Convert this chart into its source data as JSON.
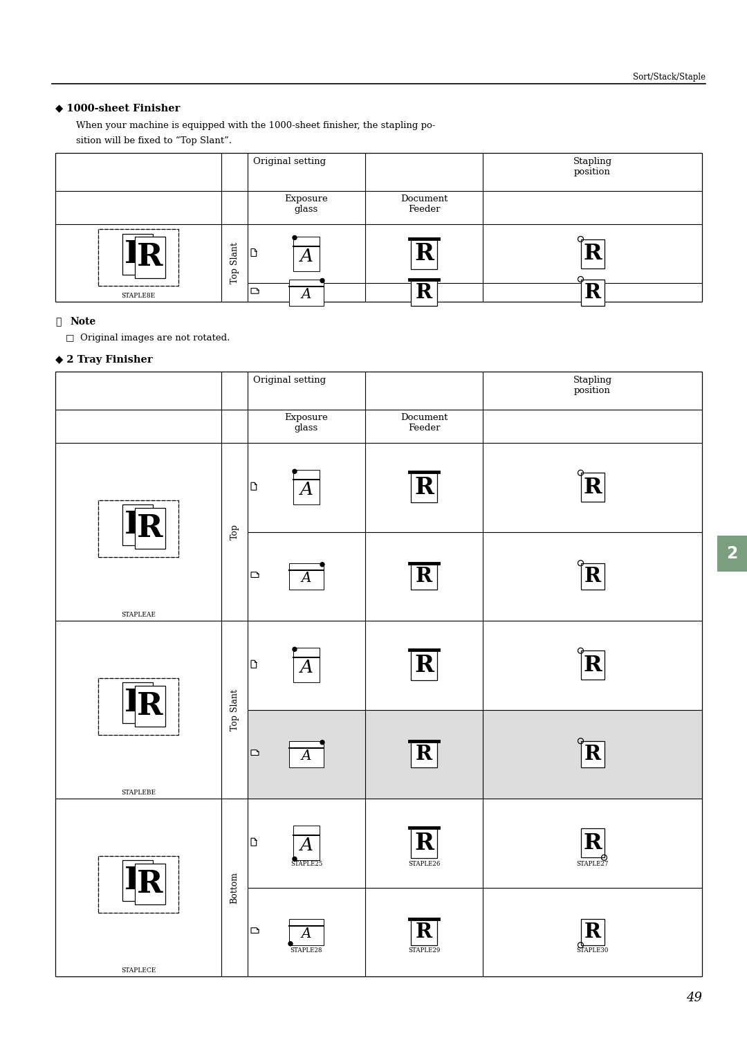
{
  "bg_color": "#ffffff",
  "page_num": "49",
  "header_text": "Sort/Stack/Staple",
  "section1_title": "◆ 1000-sheet Finisher",
  "section1_body_line1": "When your machine is equipped with the 1000-sheet finisher, the stapling po-",
  "section1_body_line2": "sition will be fixed to “Top Slant”.",
  "note_title": "Note",
  "note_body": "□  Original images are not rotated.",
  "section2_title": "◆ 2 Tray Finisher",
  "orig_setting": "Original setting",
  "stapling_pos": "Stapling\nposition",
  "exposure_glass": "Exposure\nglass",
  "document_feeder": "Document\nFeeder",
  "top_slant": "Top Slant",
  "top_label": "Top",
  "bottom_label": "Bottom",
  "staple_label_t1": "STAPLE8E",
  "staple_label_t2_1": "STAPLEAE",
  "staple_label_t2_2": "STAPLEBE",
  "staple_label_t2_3": "STAPLECE",
  "staple25": "STAPLE25",
  "staple26": "STAPLE26",
  "staple27": "STAPLE27",
  "staple28": "STAPLE28",
  "staple29": "STAPLE29",
  "staple30": "STAPLE30",
  "tab_color": "#7a9a7a",
  "tab_text": "2"
}
